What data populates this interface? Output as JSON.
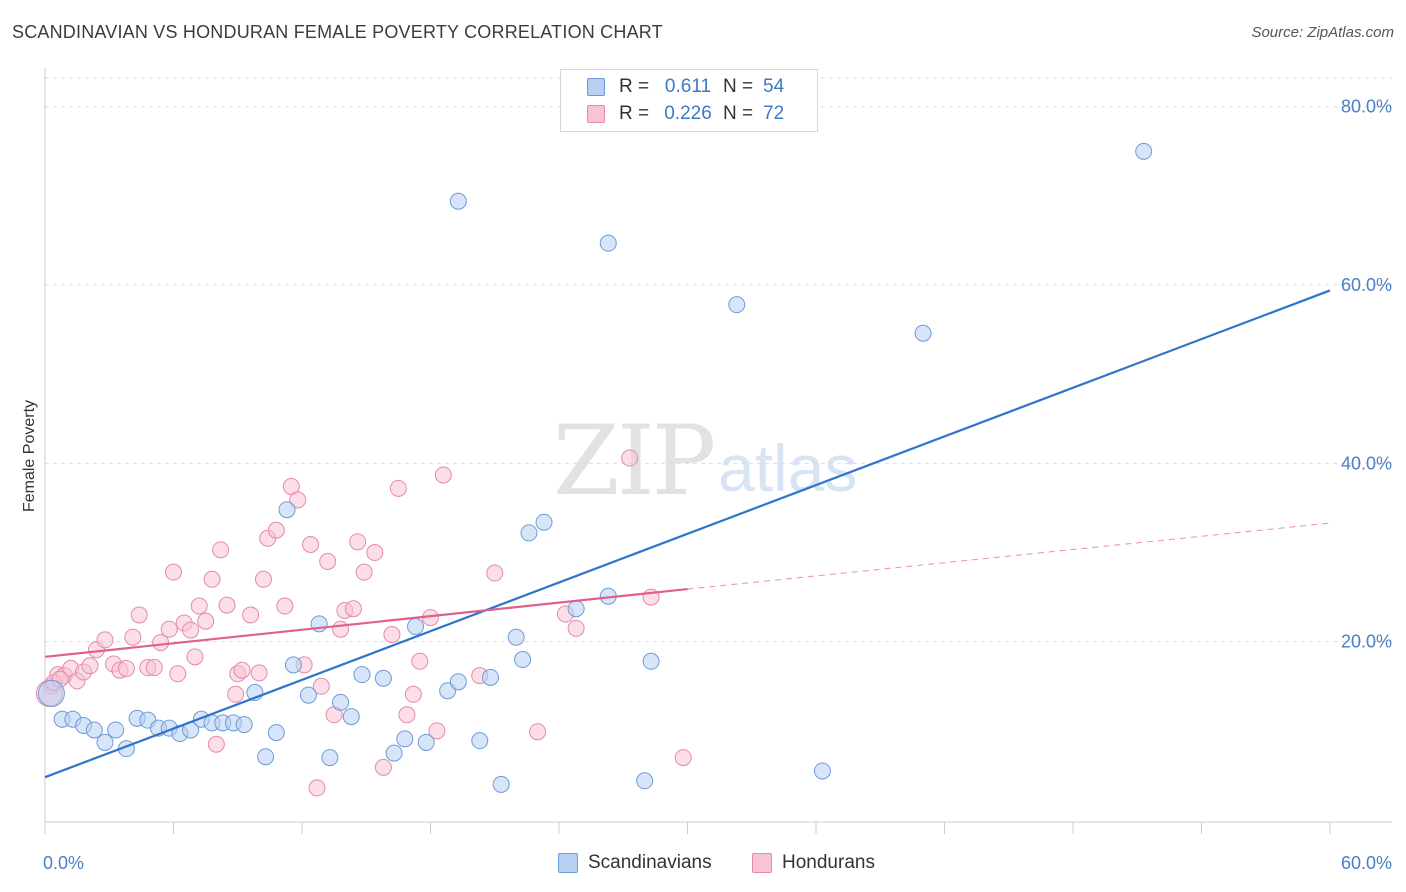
{
  "title": "SCANDINAVIAN VS HONDURAN FEMALE POVERTY CORRELATION CHART",
  "source": "Source: ZipAtlas.com",
  "watermark": {
    "zip": "ZIP",
    "atlas": "atlas"
  },
  "legend": {
    "rows": [
      {
        "r_label": "R =",
        "r_value": "0.611",
        "n_label": "N =",
        "n_value": "54"
      },
      {
        "r_label": "R =",
        "r_value": "0.226",
        "n_label": "N =",
        "n_value": "72"
      }
    ]
  },
  "bottom_legend": [
    "Scandinavians",
    "Hondurans"
  ],
  "colors": {
    "scandinavian_fill": "#b7d0f2",
    "scandinavian_stroke": "#6e9bd8",
    "scandinavian_line": "#2f73cc",
    "honduran_fill": "#f8c3d3",
    "honduran_stroke": "#e58aa8",
    "honduran_line": "#e0608a",
    "grid": "#dddddd",
    "tick_text": "#4a7fc8"
  },
  "chart_data": {
    "type": "scatter",
    "title": "SCANDINAVIAN VS HONDURAN FEMALE POVERTY CORRELATION CHART",
    "xlabel": "",
    "ylabel": "Female Poverty",
    "xlim": [
      0,
      60
    ],
    "ylim": [
      0,
      83
    ],
    "x_tick_labels": [
      "0.0%",
      "60.0%"
    ],
    "y_ticks": [
      20,
      40,
      60,
      80
    ],
    "y_tick_labels": [
      "20.0%",
      "40.0%",
      "60.0%",
      "80.0%"
    ],
    "grid": true,
    "legend_position": "top-center",
    "series": [
      {
        "name": "Scandinavians",
        "points": [
          [
            0.3,
            14.2
          ],
          [
            0.8,
            11.3
          ],
          [
            1.3,
            11.3
          ],
          [
            1.8,
            10.6
          ],
          [
            2.3,
            10.1
          ],
          [
            2.8,
            8.7
          ],
          [
            3.3,
            10.1
          ],
          [
            3.8,
            8.0
          ],
          [
            4.3,
            11.4
          ],
          [
            4.8,
            11.2
          ],
          [
            5.3,
            10.3
          ],
          [
            5.8,
            10.3
          ],
          [
            6.3,
            9.7
          ],
          [
            6.8,
            10.1
          ],
          [
            7.3,
            11.3
          ],
          [
            7.8,
            10.9
          ],
          [
            8.3,
            10.9
          ],
          [
            8.8,
            10.9
          ],
          [
            9.3,
            10.7
          ],
          [
            9.8,
            14.3
          ],
          [
            10.3,
            7.1
          ],
          [
            10.8,
            9.8
          ],
          [
            11.3,
            34.8
          ],
          [
            11.6,
            17.4
          ],
          [
            12.3,
            14.0
          ],
          [
            12.8,
            22.0
          ],
          [
            13.3,
            7.0
          ],
          [
            13.8,
            13.2
          ],
          [
            14.3,
            11.6
          ],
          [
            14.8,
            16.3
          ],
          [
            15.8,
            15.9
          ],
          [
            16.3,
            7.5
          ],
          [
            16.8,
            9.1
          ],
          [
            17.3,
            21.7
          ],
          [
            17.8,
            8.7
          ],
          [
            18.8,
            14.5
          ],
          [
            19.3,
            15.5
          ],
          [
            19.3,
            69.4
          ],
          [
            20.3,
            8.9
          ],
          [
            20.8,
            16.0
          ],
          [
            21.3,
            4.0
          ],
          [
            22.0,
            20.5
          ],
          [
            22.3,
            18.0
          ],
          [
            22.6,
            32.2
          ],
          [
            23.3,
            33.4
          ],
          [
            24.8,
            23.7
          ],
          [
            26.3,
            25.1
          ],
          [
            26.3,
            64.7
          ],
          [
            28.0,
            4.4
          ],
          [
            28.3,
            17.8
          ],
          [
            32.3,
            57.8
          ],
          [
            36.3,
            5.5
          ],
          [
            41.0,
            54.6
          ],
          [
            51.3,
            75.0
          ]
        ]
      },
      {
        "name": "Hondurans",
        "points": [
          [
            0.3,
            15.0
          ],
          [
            0.6,
            16.3
          ],
          [
            0.9,
            16.2
          ],
          [
            1.2,
            17.0
          ],
          [
            1.5,
            15.6
          ],
          [
            1.8,
            16.6
          ],
          [
            2.1,
            17.3
          ],
          [
            2.4,
            19.1
          ],
          [
            2.8,
            20.2
          ],
          [
            3.2,
            17.5
          ],
          [
            3.5,
            16.8
          ],
          [
            3.8,
            17.0
          ],
          [
            4.1,
            20.5
          ],
          [
            4.4,
            23.0
          ],
          [
            4.8,
            17.1
          ],
          [
            5.1,
            17.1
          ],
          [
            5.4,
            19.9
          ],
          [
            5.8,
            21.4
          ],
          [
            6.0,
            27.8
          ],
          [
            6.2,
            16.4
          ],
          [
            6.5,
            22.1
          ],
          [
            6.8,
            21.3
          ],
          [
            7.0,
            18.3
          ],
          [
            7.2,
            24.0
          ],
          [
            7.5,
            22.3
          ],
          [
            7.8,
            27.0
          ],
          [
            8.0,
            8.5
          ],
          [
            8.2,
            30.3
          ],
          [
            8.5,
            24.1
          ],
          [
            8.9,
            14.1
          ],
          [
            9.0,
            16.4
          ],
          [
            9.2,
            16.8
          ],
          [
            9.6,
            23.0
          ],
          [
            10.0,
            16.5
          ],
          [
            10.2,
            27.0
          ],
          [
            10.4,
            31.6
          ],
          [
            10.8,
            32.5
          ],
          [
            11.2,
            24.0
          ],
          [
            11.5,
            37.4
          ],
          [
            11.8,
            35.9
          ],
          [
            12.1,
            17.4
          ],
          [
            12.4,
            30.9
          ],
          [
            12.7,
            3.6
          ],
          [
            12.9,
            15.0
          ],
          [
            13.2,
            29.0
          ],
          [
            13.5,
            11.8
          ],
          [
            13.8,
            21.4
          ],
          [
            14.0,
            23.5
          ],
          [
            14.4,
            23.7
          ],
          [
            14.6,
            31.2
          ],
          [
            14.9,
            27.8
          ],
          [
            15.4,
            30.0
          ],
          [
            15.8,
            5.9
          ],
          [
            16.2,
            20.8
          ],
          [
            16.5,
            37.2
          ],
          [
            16.9,
            11.8
          ],
          [
            17.2,
            14.1
          ],
          [
            17.5,
            17.8
          ],
          [
            18.0,
            22.7
          ],
          [
            18.3,
            10.0
          ],
          [
            18.6,
            38.7
          ],
          [
            20.3,
            16.2
          ],
          [
            21.0,
            27.7
          ],
          [
            23.0,
            9.9
          ],
          [
            24.3,
            23.1
          ],
          [
            24.8,
            21.5
          ],
          [
            27.3,
            40.6
          ],
          [
            28.3,
            25.0
          ],
          [
            29.8,
            7.0
          ],
          [
            0.2,
            14.2
          ],
          [
            0.4,
            15.4
          ],
          [
            0.7,
            15.8
          ]
        ]
      }
    ],
    "trend_lines": [
      {
        "series": "Scandinavians",
        "x": [
          0,
          60
        ],
        "y": [
          4.8,
          59.4
        ],
        "style": "solid"
      },
      {
        "series": "Hondurans",
        "x": [
          0,
          30
        ],
        "y": [
          18.3,
          25.9
        ],
        "style": "solid"
      },
      {
        "series": "Hondurans",
        "x": [
          30,
          60
        ],
        "y": [
          25.9,
          33.3
        ],
        "style": "dashed"
      }
    ]
  }
}
